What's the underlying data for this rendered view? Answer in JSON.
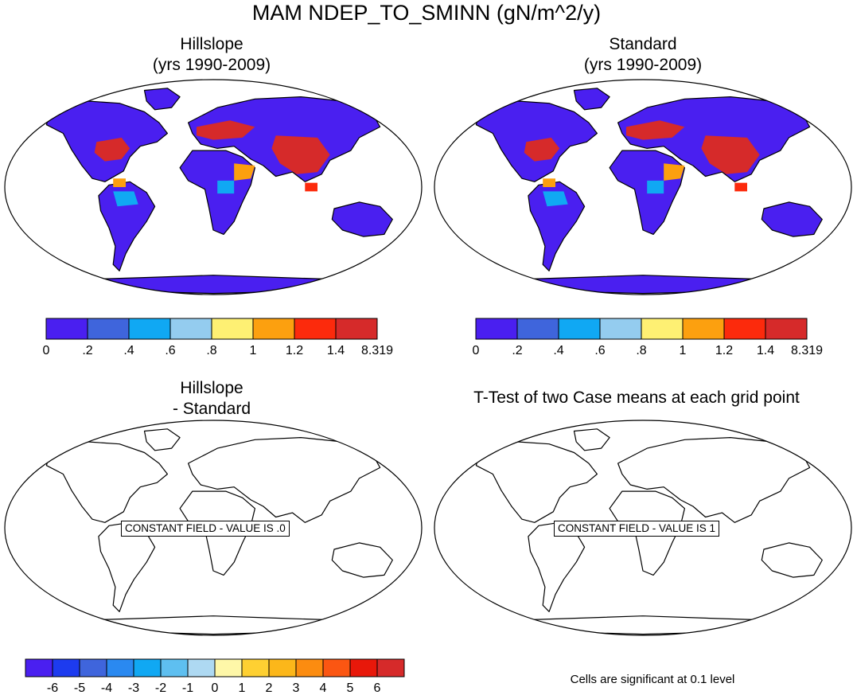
{
  "figure": {
    "title": "MAM NDEP_TO_SMINN (gN/m^2/y)"
  },
  "panels": [
    {
      "id": "hillslope",
      "title_line1": "Hillslope",
      "title_line2": "(yrs 1990-2009)",
      "kind": "field"
    },
    {
      "id": "standard",
      "title_line1": "Standard",
      "title_line2": "(yrs 1990-2009)",
      "kind": "field"
    },
    {
      "id": "difference",
      "title_line1": "Hillslope",
      "title_line2": "- Standard",
      "kind": "constant",
      "constant_label": "CONSTANT FIELD - VALUE IS .0"
    },
    {
      "id": "ttest",
      "title_line1": "T-Test of two Case means at each grid point",
      "title_line2": "",
      "kind": "constant",
      "constant_label": "CONSTANT FIELD - VALUE IS 1"
    }
  ],
  "colorbar_top": {
    "colors": [
      "#4a1ff0",
      "#3f65dc",
      "#10a8f3",
      "#94ccef",
      "#fef073",
      "#fca00f",
      "#fc2a0c",
      "#d62a2a"
    ],
    "labels": [
      "0",
      ".2",
      ".4",
      ".6",
      ".8",
      "1",
      "1.2",
      "1.4",
      "8.319"
    ]
  },
  "colorbar_bottom": {
    "colors": [
      "#4a1ff0",
      "#1d3bef",
      "#3f65dc",
      "#2a89f0",
      "#10a8f3",
      "#5ebff0",
      "#aed9f2",
      "#fef7a8",
      "#fed032",
      "#fcb71a",
      "#fc8c10",
      "#fb5612",
      "#e8180a",
      "#d62a2a"
    ],
    "labels": [
      "-6",
      "-5",
      "-4",
      "-3",
      "-2",
      "-1",
      "0",
      "1",
      "2",
      "3",
      "4",
      "5",
      "6"
    ]
  },
  "significance_note": "Cells are significant at 0.1 level",
  "map_legend_values": {
    "ocean": "#ffffff",
    "low_deposition": "#4a1ff0",
    "high_deposition": "#d62a2a"
  }
}
